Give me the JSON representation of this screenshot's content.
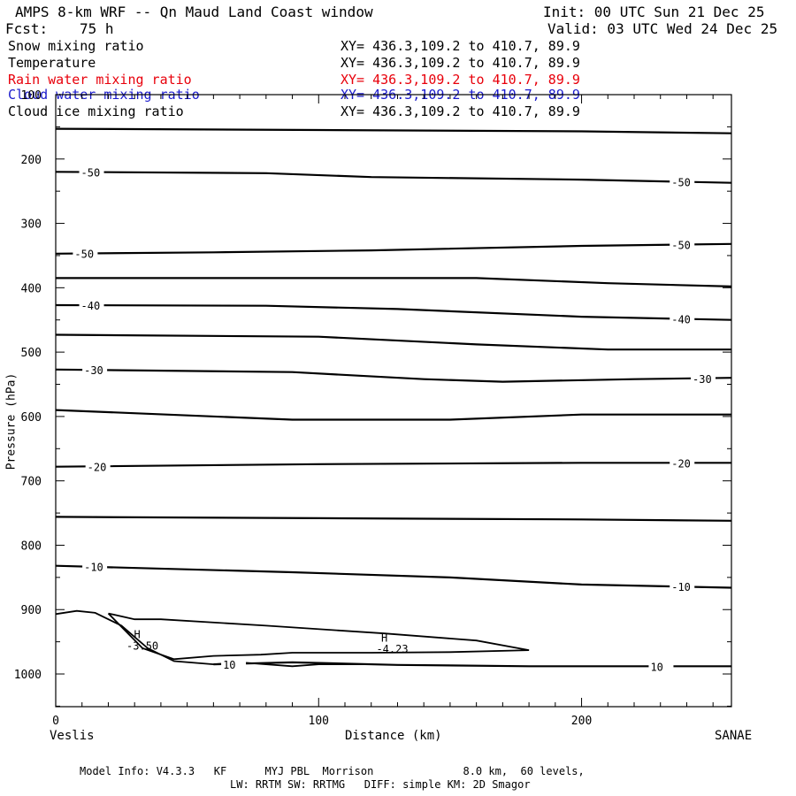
{
  "header": {
    "title": "AMPS 8-km WRF -- Qn Maud Land Coast window",
    "init": "Init: 00 UTC Sun 21 Dec 25",
    "fcst_label": "Fcst:",
    "fcst_value": "75 h",
    "valid": "Valid: 03 UTC Wed 24 Dec 25"
  },
  "fields": [
    {
      "name": "Snow mixing ratio",
      "xy": "XY= 436.3,109.2 to 410.7, 89.9",
      "color": "#000000"
    },
    {
      "name": "Temperature",
      "xy": "XY= 436.3,109.2 to 410.7, 89.9",
      "color": "#000000"
    },
    {
      "name": "Rain water mixing ratio",
      "xy": "XY= 436.3,109.2 to 410.7, 89.9",
      "color": "#e8000b"
    },
    {
      "name": "Cloud water mixing ratio",
      "xy": "XY= 436.3,109.2 to 410.7, 89.9",
      "color": "#1a1acc"
    },
    {
      "name": "Cloud ice mixing ratio",
      "xy": "XY= 436.3,109.2 to 410.7, 89.9",
      "color": "#000000"
    }
  ],
  "footer": {
    "line1": "Model Info: V4.3.3   KF      MYJ PBL  Morrison              8.0 km,  60 levels,",
    "line2": "LW: RRTM SW: RRTMG   DIFF: simple KM: 2D Smagor"
  },
  "chart_data": {
    "type": "line",
    "title": "",
    "xlabel": "Distance (km)",
    "ylabel": "Pressure (hPa)",
    "xlim": [
      0,
      257
    ],
    "ylim_pressure": [
      100,
      1050
    ],
    "y_axis_inverted": true,
    "x_ticks": [
      0,
      100,
      200
    ],
    "y_ticks": [
      100,
      200,
      300,
      400,
      500,
      600,
      700,
      800,
      900,
      1000
    ],
    "x_end_labels": {
      "left": "Veslis",
      "right": "SANAE"
    },
    "grid": false,
    "series": [
      {
        "label": "",
        "points": [
          [
            0,
            153
          ],
          [
            100,
            155
          ],
          [
            200,
            157
          ],
          [
            257,
            160
          ]
        ]
      },
      {
        "label": "-50",
        "points": [
          [
            0,
            220
          ],
          [
            80,
            222
          ],
          [
            120,
            228
          ],
          [
            200,
            232
          ],
          [
            257,
            237
          ]
        ]
      },
      {
        "label": "-50",
        "points": [
          [
            0,
            347
          ],
          [
            60,
            345
          ],
          [
            120,
            342
          ],
          [
            200,
            335
          ],
          [
            257,
            332
          ]
        ]
      },
      {
        "label": "",
        "points": [
          [
            0,
            385
          ],
          [
            100,
            385
          ],
          [
            160,
            385
          ],
          [
            210,
            393
          ],
          [
            257,
            398
          ]
        ]
      },
      {
        "label": "-40",
        "points": [
          [
            0,
            427
          ],
          [
            80,
            428
          ],
          [
            130,
            433
          ],
          [
            200,
            445
          ],
          [
            257,
            450
          ]
        ]
      },
      {
        "label": "",
        "points": [
          [
            0,
            473
          ],
          [
            100,
            476
          ],
          [
            160,
            488
          ],
          [
            210,
            496
          ],
          [
            257,
            496
          ]
        ]
      },
      {
        "label": "-30",
        "points": [
          [
            0,
            527
          ],
          [
            90,
            531
          ],
          [
            140,
            542
          ],
          [
            170,
            546
          ],
          [
            220,
            542
          ],
          [
            257,
            540
          ]
        ]
      },
      {
        "label": "",
        "points": [
          [
            0,
            590
          ],
          [
            90,
            605
          ],
          [
            150,
            605
          ],
          [
            200,
            597
          ],
          [
            257,
            597
          ]
        ]
      },
      {
        "label": "-20",
        "points": [
          [
            0,
            678
          ],
          [
            100,
            674
          ],
          [
            200,
            672
          ],
          [
            257,
            672
          ]
        ]
      },
      {
        "label": "",
        "points": [
          [
            0,
            756
          ],
          [
            100,
            758
          ],
          [
            200,
            760
          ],
          [
            257,
            762
          ]
        ]
      },
      {
        "label": "-10",
        "points": [
          [
            0,
            832
          ],
          [
            90,
            842
          ],
          [
            150,
            850
          ],
          [
            200,
            861
          ],
          [
            257,
            866
          ]
        ]
      },
      {
        "label": "10",
        "points": [
          [
            60,
            985
          ],
          [
            90,
            982
          ],
          [
            130,
            986
          ],
          [
            180,
            988
          ],
          [
            257,
            988
          ]
        ]
      }
    ],
    "closed_contours": [
      {
        "label": "",
        "points": [
          [
            20,
            906
          ],
          [
            30,
            915
          ],
          [
            40,
            915
          ],
          [
            80,
            925
          ],
          [
            125,
            937
          ],
          [
            160,
            948
          ],
          [
            180,
            963
          ],
          [
            150,
            966
          ],
          [
            120,
            967
          ],
          [
            90,
            967
          ],
          [
            78,
            970
          ],
          [
            60,
            972
          ],
          [
            45,
            977
          ],
          [
            33,
            960
          ],
          [
            20,
            906
          ]
        ]
      },
      {
        "label": "",
        "points": [
          [
            0,
            907
          ],
          [
            8,
            902
          ],
          [
            15,
            905
          ],
          [
            25,
            925
          ],
          [
            35,
            960
          ],
          [
            45,
            980
          ],
          [
            60,
            985
          ],
          [
            70,
            982
          ],
          [
            90,
            988
          ],
          [
            100,
            985
          ],
          [
            120,
            985
          ]
        ]
      }
    ],
    "annotations": [
      {
        "text": "H",
        "x": 31,
        "y": 944
      },
      {
        "text": "-3.50",
        "x": 33,
        "y": 962
      },
      {
        "text": "H",
        "x": 125,
        "y": 950
      },
      {
        "text": "-4.23",
        "x": 128,
        "y": 967
      }
    ]
  }
}
